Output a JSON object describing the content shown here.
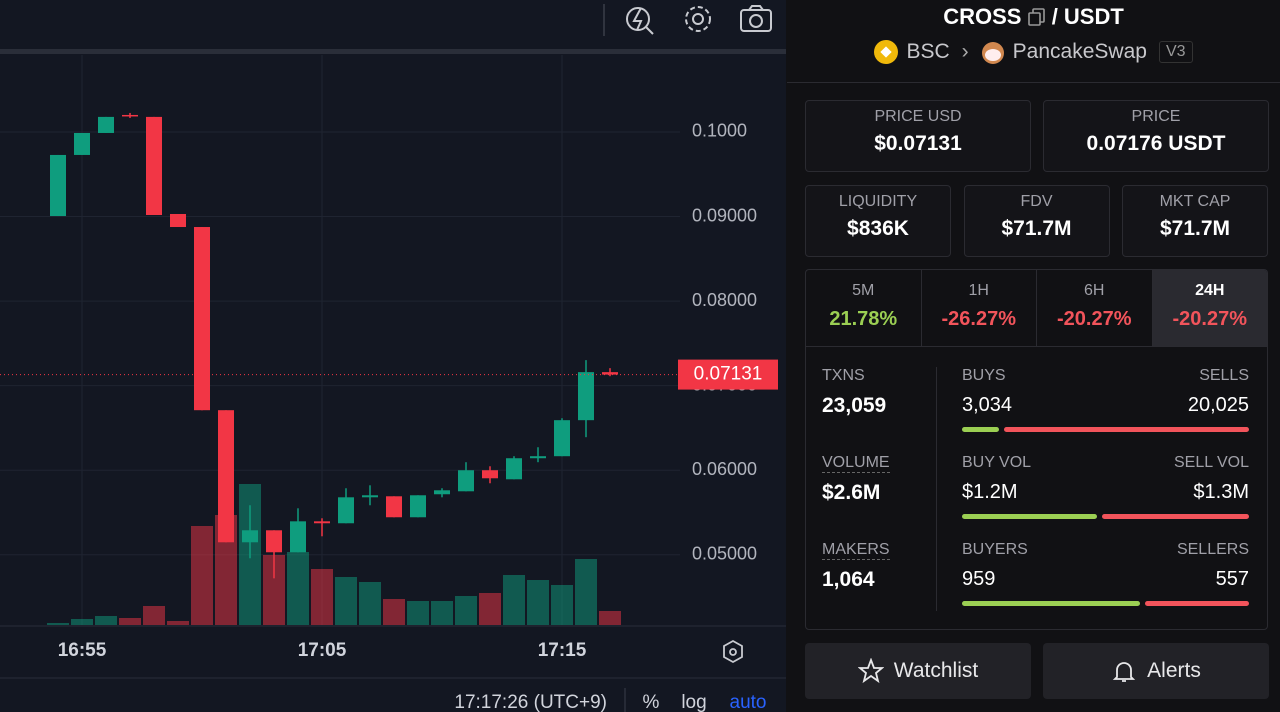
{
  "toolbar": {
    "time": "17:17:26 (UTC+9)",
    "percent": "%",
    "log": "log",
    "auto": "auto"
  },
  "chart_data": {
    "type": "candlestick",
    "categories": [
      null,
      "16:55",
      null,
      null,
      null,
      null,
      null,
      null,
      null,
      null,
      null,
      "17:05",
      null,
      null,
      null,
      null,
      null,
      null,
      null,
      null,
      null,
      "17:15",
      null,
      null
    ],
    "open": [
      0.09006,
      0.09728,
      0.09988,
      0.10201,
      0.10178,
      0.0903,
      0.08876,
      0.0671,
      0.05148,
      0.0529,
      0.0503,
      0.05396,
      0.05373,
      0.0568,
      0.05692,
      0.05444,
      0.05716,
      0.05751,
      0.06,
      0.05893,
      0.06142,
      0.06166,
      0.06592,
      0.0716
    ],
    "high": [
      0.09728,
      0.09988,
      0.10178,
      0.10225,
      0.10178,
      0.0903,
      0.08876,
      0.0671,
      0.05586,
      0.0529,
      0.0555,
      0.05432,
      0.05787,
      0.05822,
      0.05692,
      0.05704,
      0.05787,
      0.06095,
      0.06047,
      0.06166,
      0.06272,
      0.06615,
      0.07302,
      0.07207
    ],
    "low": [
      0.09006,
      0.09728,
      0.09988,
      0.10166,
      0.09018,
      0.08876,
      0.0671,
      0.05148,
      0.04959,
      0.04722,
      0.0503,
      0.05219,
      0.05373,
      0.05586,
      0.05444,
      0.05444,
      0.0568,
      0.05751,
      0.05846,
      0.05893,
      0.06095,
      0.06166,
      0.06391,
      0.07112
    ],
    "close": [
      0.09728,
      0.09988,
      0.10178,
      0.1019,
      0.09018,
      0.08876,
      0.0671,
      0.05148,
      0.0529,
      0.0503,
      0.05396,
      0.05373,
      0.0568,
      0.05704,
      0.05444,
      0.05704,
      0.05763,
      0.06,
      0.05905,
      0.06142,
      0.06166,
      0.06592,
      0.0716,
      0.07131
    ],
    "volume": [
      2,
      6,
      9,
      7,
      19,
      4,
      99,
      110,
      141,
      70,
      73,
      56,
      48,
      43,
      26,
      24,
      24,
      29,
      32,
      50,
      45,
      40,
      66,
      14
    ],
    "up_color": "#0f9d7e",
    "down_color": "#f23645",
    "ylim": [
      0.0417,
      0.1091
    ],
    "yticks": [
      {
        "value": 0.05,
        "label": "0.05000"
      },
      {
        "value": 0.06,
        "label": "0.06000"
      },
      {
        "value": 0.07,
        "label": "0.07000"
      },
      {
        "value": 0.08,
        "label": "0.08000"
      },
      {
        "value": 0.09,
        "label": "0.09000"
      },
      {
        "value": 0.1,
        "label": "0.1000"
      }
    ],
    "last_price": {
      "value": 0.07131,
      "label": "0.07131"
    },
    "grid": true
  },
  "pair": {
    "base": "CROSS",
    "quote": "/ USDT",
    "chain": "BSC",
    "dex": "PancakeSwap",
    "version": "V3"
  },
  "prices": [
    {
      "label": "PRICE USD",
      "value": "$0.07131"
    },
    {
      "label": "PRICE",
      "value": "0.07176 USDT"
    }
  ],
  "metrics": [
    {
      "label": "LIQUIDITY",
      "value": "$836K"
    },
    {
      "label": "FDV",
      "value": "$71.7M"
    },
    {
      "label": "MKT CAP",
      "value": "$71.7M"
    }
  ],
  "changes": [
    {
      "period": "5M",
      "value": 21.78,
      "label": "21.78%"
    },
    {
      "period": "1H",
      "value": -26.27,
      "label": "-26.27%"
    },
    {
      "period": "6H",
      "value": -20.27,
      "label": "-20.27%"
    },
    {
      "period": "24H",
      "value": -20.27,
      "label": "-20.27%",
      "active": true
    }
  ],
  "activity": [
    {
      "label": "TXNS",
      "total": "23,059",
      "left": {
        "name": "BUYS",
        "value": 3034,
        "label": "3,034"
      },
      "right": {
        "name": "SELLS",
        "value": 20025,
        "label": "20,025"
      }
    },
    {
      "label": "VOLUME",
      "total": "$2.6M",
      "left": {
        "name": "BUY VOL",
        "value": 1200000,
        "label": "$1.2M"
      },
      "right": {
        "name": "SELL VOL",
        "value": 1300000,
        "label": "$1.3M"
      }
    },
    {
      "label": "MAKERS",
      "total": "1,064",
      "left": {
        "name": "BUYERS",
        "value": 959
      },
      "right": {
        "name": "SELLERS",
        "value": 557
      }
    }
  ],
  "buttons": {
    "watchlist": "Watchlist",
    "alerts": "Alerts"
  }
}
